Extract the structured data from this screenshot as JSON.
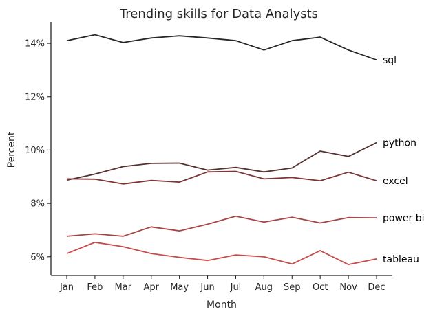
{
  "chart_data": {
    "type": "line",
    "title": "Trending skills for Data Analysts",
    "xlabel": "Month",
    "ylabel": "Percent",
    "categories": [
      "Jan",
      "Feb",
      "Mar",
      "Apr",
      "May",
      "Jun",
      "Jul",
      "Aug",
      "Sep",
      "Oct",
      "Nov",
      "Dec"
    ],
    "ylim": [
      5.3,
      14.8
    ],
    "yticks": [
      6,
      8,
      10,
      12,
      14
    ],
    "ytick_labels": [
      "6%",
      "8%",
      "10%",
      "12%",
      "14%"
    ],
    "grid": false,
    "legend": "direct labels at line ends",
    "series": [
      {
        "name": "sql",
        "color": "#262626",
        "values": [
          14.1,
          14.32,
          14.03,
          14.2,
          14.28,
          14.2,
          14.1,
          13.75,
          14.1,
          14.23,
          13.75,
          13.38
        ]
      },
      {
        "name": "python",
        "color": "#55302e",
        "values": [
          8.87,
          9.1,
          9.38,
          9.5,
          9.51,
          9.25,
          9.35,
          9.18,
          9.33,
          9.96,
          9.76,
          10.28
        ]
      },
      {
        "name": "excel",
        "color": "#7d3434",
        "values": [
          8.92,
          8.91,
          8.73,
          8.86,
          8.8,
          9.18,
          9.2,
          8.92,
          8.97,
          8.85,
          9.17,
          8.85
        ]
      },
      {
        "name": "power bi",
        "color": "#a84444",
        "values": [
          6.77,
          6.86,
          6.77,
          7.12,
          6.97,
          7.22,
          7.52,
          7.3,
          7.48,
          7.27,
          7.47,
          7.46
        ]
      },
      {
        "name": "tableau",
        "color": "#c84b4b",
        "values": [
          6.12,
          6.54,
          6.38,
          6.12,
          5.98,
          5.86,
          6.07,
          6.0,
          5.73,
          6.23,
          5.71,
          5.92
        ]
      }
    ]
  }
}
